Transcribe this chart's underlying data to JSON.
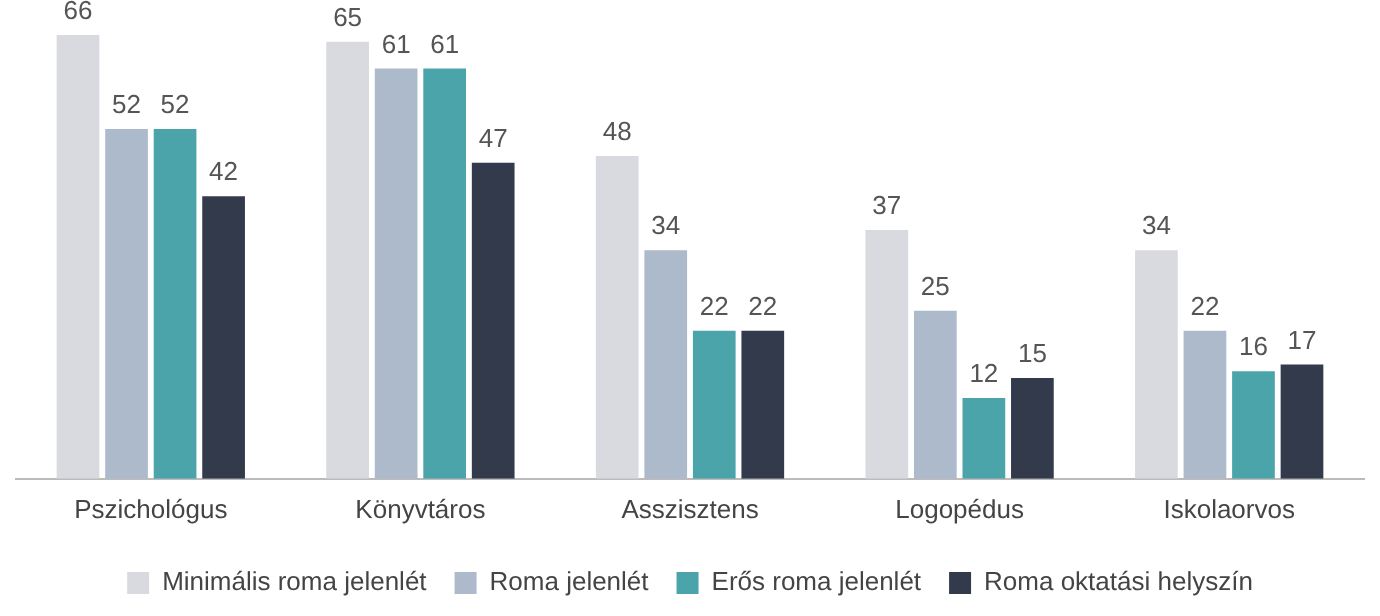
{
  "chart_data": {
    "type": "bar",
    "categories": [
      "Pszichológus",
      "Könyvtáros",
      "Asszisztens",
      "Logopédus",
      "Iskolaorvos"
    ],
    "series": [
      {
        "name": "Minimális roma jelenlét",
        "color": "#d9dadf",
        "values": [
          66,
          65,
          48,
          37,
          34
        ]
      },
      {
        "name": "Roma jelenlét",
        "color": "#adbacb",
        "values": [
          52,
          61,
          34,
          25,
          22
        ]
      },
      {
        "name": "Erős roma jelenlét",
        "color": "#4ba4a9",
        "values": [
          52,
          61,
          22,
          12,
          16
        ]
      },
      {
        "name": "Roma oktatási helyszín",
        "color": "#323a4c",
        "values": [
          42,
          47,
          22,
          15,
          17
        ]
      }
    ],
    "data_labels": true,
    "grid": false,
    "legend": "bottom"
  }
}
